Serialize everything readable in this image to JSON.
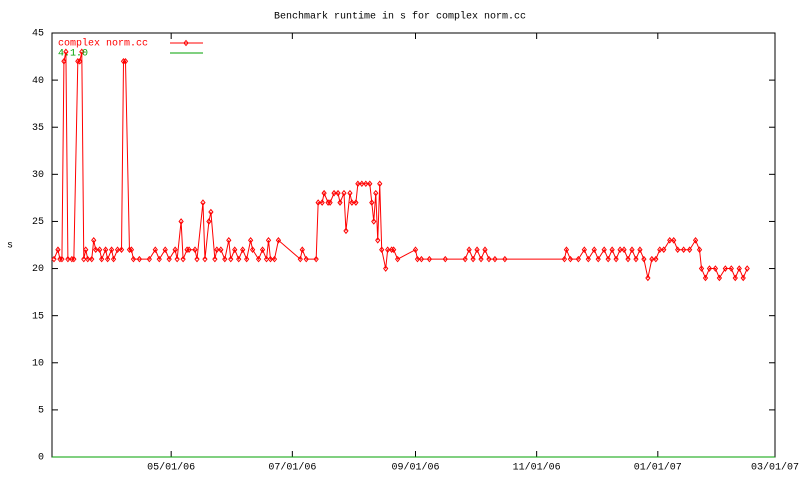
{
  "chart_data": {
    "type": "line",
    "title": "Benchmark runtime in s for complex norm.cc",
    "y_label": "s",
    "xlim": [
      "2006-03-02",
      "2007-03-01"
    ],
    "xticks": [
      {
        "value": "2006-05-01",
        "label": "05/01/06"
      },
      {
        "value": "2006-07-01",
        "label": "07/01/06"
      },
      {
        "value": "2006-09-01",
        "label": "09/01/06"
      },
      {
        "value": "2006-11-01",
        "label": "11/01/06"
      },
      {
        "value": "2007-01-01",
        "label": "01/01/07"
      },
      {
        "value": "2007-03-01",
        "label": "03/01/07"
      }
    ],
    "ylim": [
      0,
      45
    ],
    "yticks": [
      0,
      5,
      10,
      15,
      20,
      25,
      30,
      35,
      40,
      45
    ],
    "legend": "top-left",
    "series": [
      {
        "name": "complex norm.cc",
        "color": "#ff0000",
        "markers": true,
        "x": [
          "2006-03-03",
          "2006-03-05",
          "2006-03-06",
          "2006-03-07",
          "2006-03-08",
          "2006-03-09",
          "2006-03-10",
          "2006-03-12",
          "2006-03-13",
          "2006-03-15",
          "2006-03-16",
          "2006-03-17",
          "2006-03-18",
          "2006-03-19",
          "2006-03-20",
          "2006-03-22",
          "2006-03-23",
          "2006-03-24",
          "2006-03-26",
          "2006-03-27",
          "2006-03-29",
          "2006-03-30",
          "2006-04-01",
          "2006-04-02",
          "2006-04-04",
          "2006-04-06",
          "2006-04-07",
          "2006-04-08",
          "2006-04-10",
          "2006-04-11",
          "2006-04-12",
          "2006-04-15",
          "2006-04-20",
          "2006-04-23",
          "2006-04-25",
          "2006-04-28",
          "2006-04-30",
          "2006-05-03",
          "2006-05-04",
          "2006-05-06",
          "2006-05-07",
          "2006-05-09",
          "2006-05-10",
          "2006-05-13",
          "2006-05-14",
          "2006-05-17",
          "2006-05-18",
          "2006-05-20",
          "2006-05-21",
          "2006-05-23",
          "2006-05-24",
          "2006-05-26",
          "2006-05-28",
          "2006-05-30",
          "2006-05-31",
          "2006-06-02",
          "2006-06-04",
          "2006-06-06",
          "2006-06-08",
          "2006-06-10",
          "2006-06-11",
          "2006-06-14",
          "2006-06-16",
          "2006-06-18",
          "2006-06-19",
          "2006-06-20",
          "2006-06-22",
          "2006-06-24",
          "2006-07-05",
          "2006-07-06",
          "2006-07-08",
          "2006-07-13",
          "2006-07-14",
          "2006-07-16",
          "2006-07-17",
          "2006-07-19",
          "2006-07-20",
          "2006-07-22",
          "2006-07-24",
          "2006-07-25",
          "2006-07-27",
          "2006-07-28",
          "2006-07-30",
          "2006-07-31",
          "2006-08-02",
          "2006-08-03",
          "2006-08-05",
          "2006-08-07",
          "2006-08-09",
          "2006-08-10",
          "2006-08-11",
          "2006-08-12",
          "2006-08-13",
          "2006-08-14",
          "2006-08-15",
          "2006-08-17",
          "2006-08-18",
          "2006-08-20",
          "2006-08-21",
          "2006-08-23",
          "2006-09-01",
          "2006-09-02",
          "2006-09-04",
          "2006-09-08",
          "2006-09-16",
          "2006-09-26",
          "2006-09-28",
          "2006-09-30",
          "2006-10-02",
          "2006-10-04",
          "2006-10-06",
          "2006-10-08",
          "2006-10-11",
          "2006-10-16",
          "2006-11-15",
          "2006-11-16",
          "2006-11-18",
          "2006-11-22",
          "2006-11-25",
          "2006-11-27",
          "2006-11-30",
          "2006-12-02",
          "2006-12-05",
          "2006-12-07",
          "2006-12-09",
          "2006-12-11",
          "2006-12-13",
          "2006-12-15",
          "2006-12-17",
          "2006-12-19",
          "2006-12-21",
          "2006-12-23",
          "2006-12-25",
          "2006-12-27",
          "2006-12-29",
          "2006-12-31",
          "2007-01-02",
          "2007-01-04",
          "2007-01-07",
          "2007-01-09",
          "2007-01-11",
          "2007-01-14",
          "2007-01-17",
          "2007-01-20",
          "2007-01-22",
          "2007-01-23",
          "2007-01-25",
          "2007-01-27",
          "2007-01-30",
          "2007-02-01",
          "2007-02-04",
          "2007-02-07",
          "2007-02-09",
          "2007-02-11",
          "2007-02-13",
          "2007-02-15"
        ],
        "values": [
          21,
          22,
          21,
          21,
          42,
          43,
          21,
          21,
          21,
          42,
          42,
          43,
          21,
          22,
          21,
          21,
          23,
          22,
          22,
          21,
          22,
          21,
          22,
          21,
          22,
          22,
          42,
          42,
          22,
          22,
          21,
          21,
          21,
          22,
          21,
          22,
          21,
          22,
          21,
          25,
          21,
          22,
          22,
          22,
          21,
          27,
          21,
          25,
          26,
          21,
          22,
          22,
          21,
          23,
          21,
          22,
          21,
          22,
          21,
          23,
          22,
          21,
          22,
          21,
          23,
          21,
          21,
          23,
          21,
          22,
          21,
          21,
          27,
          27,
          28,
          27,
          27,
          28,
          28,
          27,
          28,
          24,
          28,
          27,
          27,
          29,
          29,
          29,
          29,
          27,
          25,
          28,
          23,
          29,
          22,
          20,
          22,
          22,
          22,
          21,
          22,
          21,
          21,
          21,
          21,
          21,
          22,
          21,
          22,
          21,
          22,
          21,
          21,
          21,
          21,
          22,
          21,
          21,
          22,
          21,
          22,
          21,
          22,
          21,
          22,
          21,
          22,
          22,
          21,
          22,
          21,
          22,
          21,
          19,
          21,
          21,
          22,
          22,
          23,
          23,
          22,
          22,
          22,
          23,
          22,
          20,
          19,
          20,
          20,
          19,
          20,
          20,
          19,
          20,
          19,
          20
        ]
      },
      {
        "name": "4.1.0",
        "color": "#00a000",
        "markers": false,
        "x": [
          "2006-03-02",
          "2007-03-01"
        ],
        "values": [
          0,
          0
        ]
      }
    ]
  }
}
